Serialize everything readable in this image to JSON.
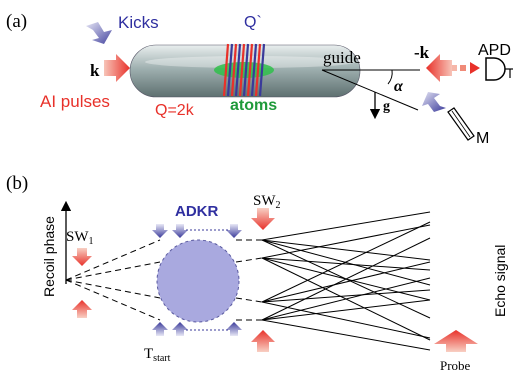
{
  "panel_a": {
    "label": "(a)",
    "kicks_label": "Kicks",
    "qprime_label": "Q`",
    "k_label": "k",
    "ai_pulses_label": "AI pulses",
    "q2k_label": "Q=2k",
    "atoms_label": "atoms",
    "guide_label": "guide",
    "minus_k_label": "-k",
    "apd_label": "APD",
    "alpha_label": "α",
    "g_label": "g",
    "mirror_label": "M"
  },
  "panel_b": {
    "label": "(b)",
    "recoil_phase_label": "Recoil phase",
    "sw1_main": "SW",
    "sw1_sub": "1",
    "sw2_main": "SW",
    "sw2_sub": "2",
    "adkr_label": "ADKR",
    "tstart_main": "T",
    "tstart_sub": "start",
    "echo_signal_label": "Echo signal",
    "probe_label": "Probe"
  },
  "colors": {
    "red_arrow": "#e8312a",
    "blue_arrow": "#3a3a9a",
    "green": "#1f9a3a",
    "blue_text": "#2f2fa0",
    "red_text": "#e8312a",
    "adkr_fill": "#a9a9df"
  }
}
